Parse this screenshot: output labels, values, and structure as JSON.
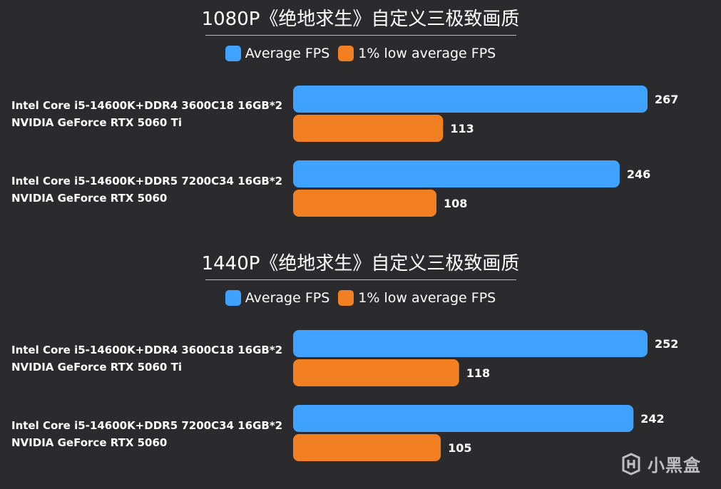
{
  "colors": {
    "background": "#2b2b2e",
    "average": "#3fa2ff",
    "low": "#f28023",
    "text": "#ffffff"
  },
  "watermark": "小黑盒",
  "chart_data": [
    {
      "type": "bar",
      "orientation": "horizontal",
      "title": "1080P《绝地求生》自定义三极致画质",
      "legend": [
        "Average FPS",
        "1% low average FPS"
      ],
      "legend_position": "top-center",
      "grid": false,
      "categories": [
        [
          "Intel Core i5-14600K+DDR4 3600C18 16GB*2",
          "NVIDIA GeForce RTX 5060 Ti"
        ],
        [
          "Intel Core i5-14600K+DDR5 7200C34 16GB*2",
          "NVIDIA GeForce RTX 5060"
        ]
      ],
      "series": [
        {
          "name": "Average FPS",
          "values": [
            267,
            246
          ]
        },
        {
          "name": "1% low average FPS",
          "values": [
            113,
            108
          ]
        }
      ],
      "xlim": [
        0,
        267
      ]
    },
    {
      "type": "bar",
      "orientation": "horizontal",
      "title": "1440P《绝地求生》自定义三极致画质",
      "legend": [
        "Average FPS",
        "1% low average FPS"
      ],
      "legend_position": "top-center",
      "grid": false,
      "categories": [
        [
          "Intel Core i5-14600K+DDR4 3600C18 16GB*2",
          "NVIDIA GeForce RTX 5060 Ti"
        ],
        [
          "Intel Core i5-14600K+DDR5 7200C34 16GB*2",
          "NVIDIA GeForce RTX 5060"
        ]
      ],
      "series": [
        {
          "name": "Average FPS",
          "values": [
            252,
            242
          ]
        },
        {
          "name": "1% low average FPS",
          "values": [
            118,
            105
          ]
        }
      ],
      "xlim": [
        0,
        252
      ]
    }
  ]
}
